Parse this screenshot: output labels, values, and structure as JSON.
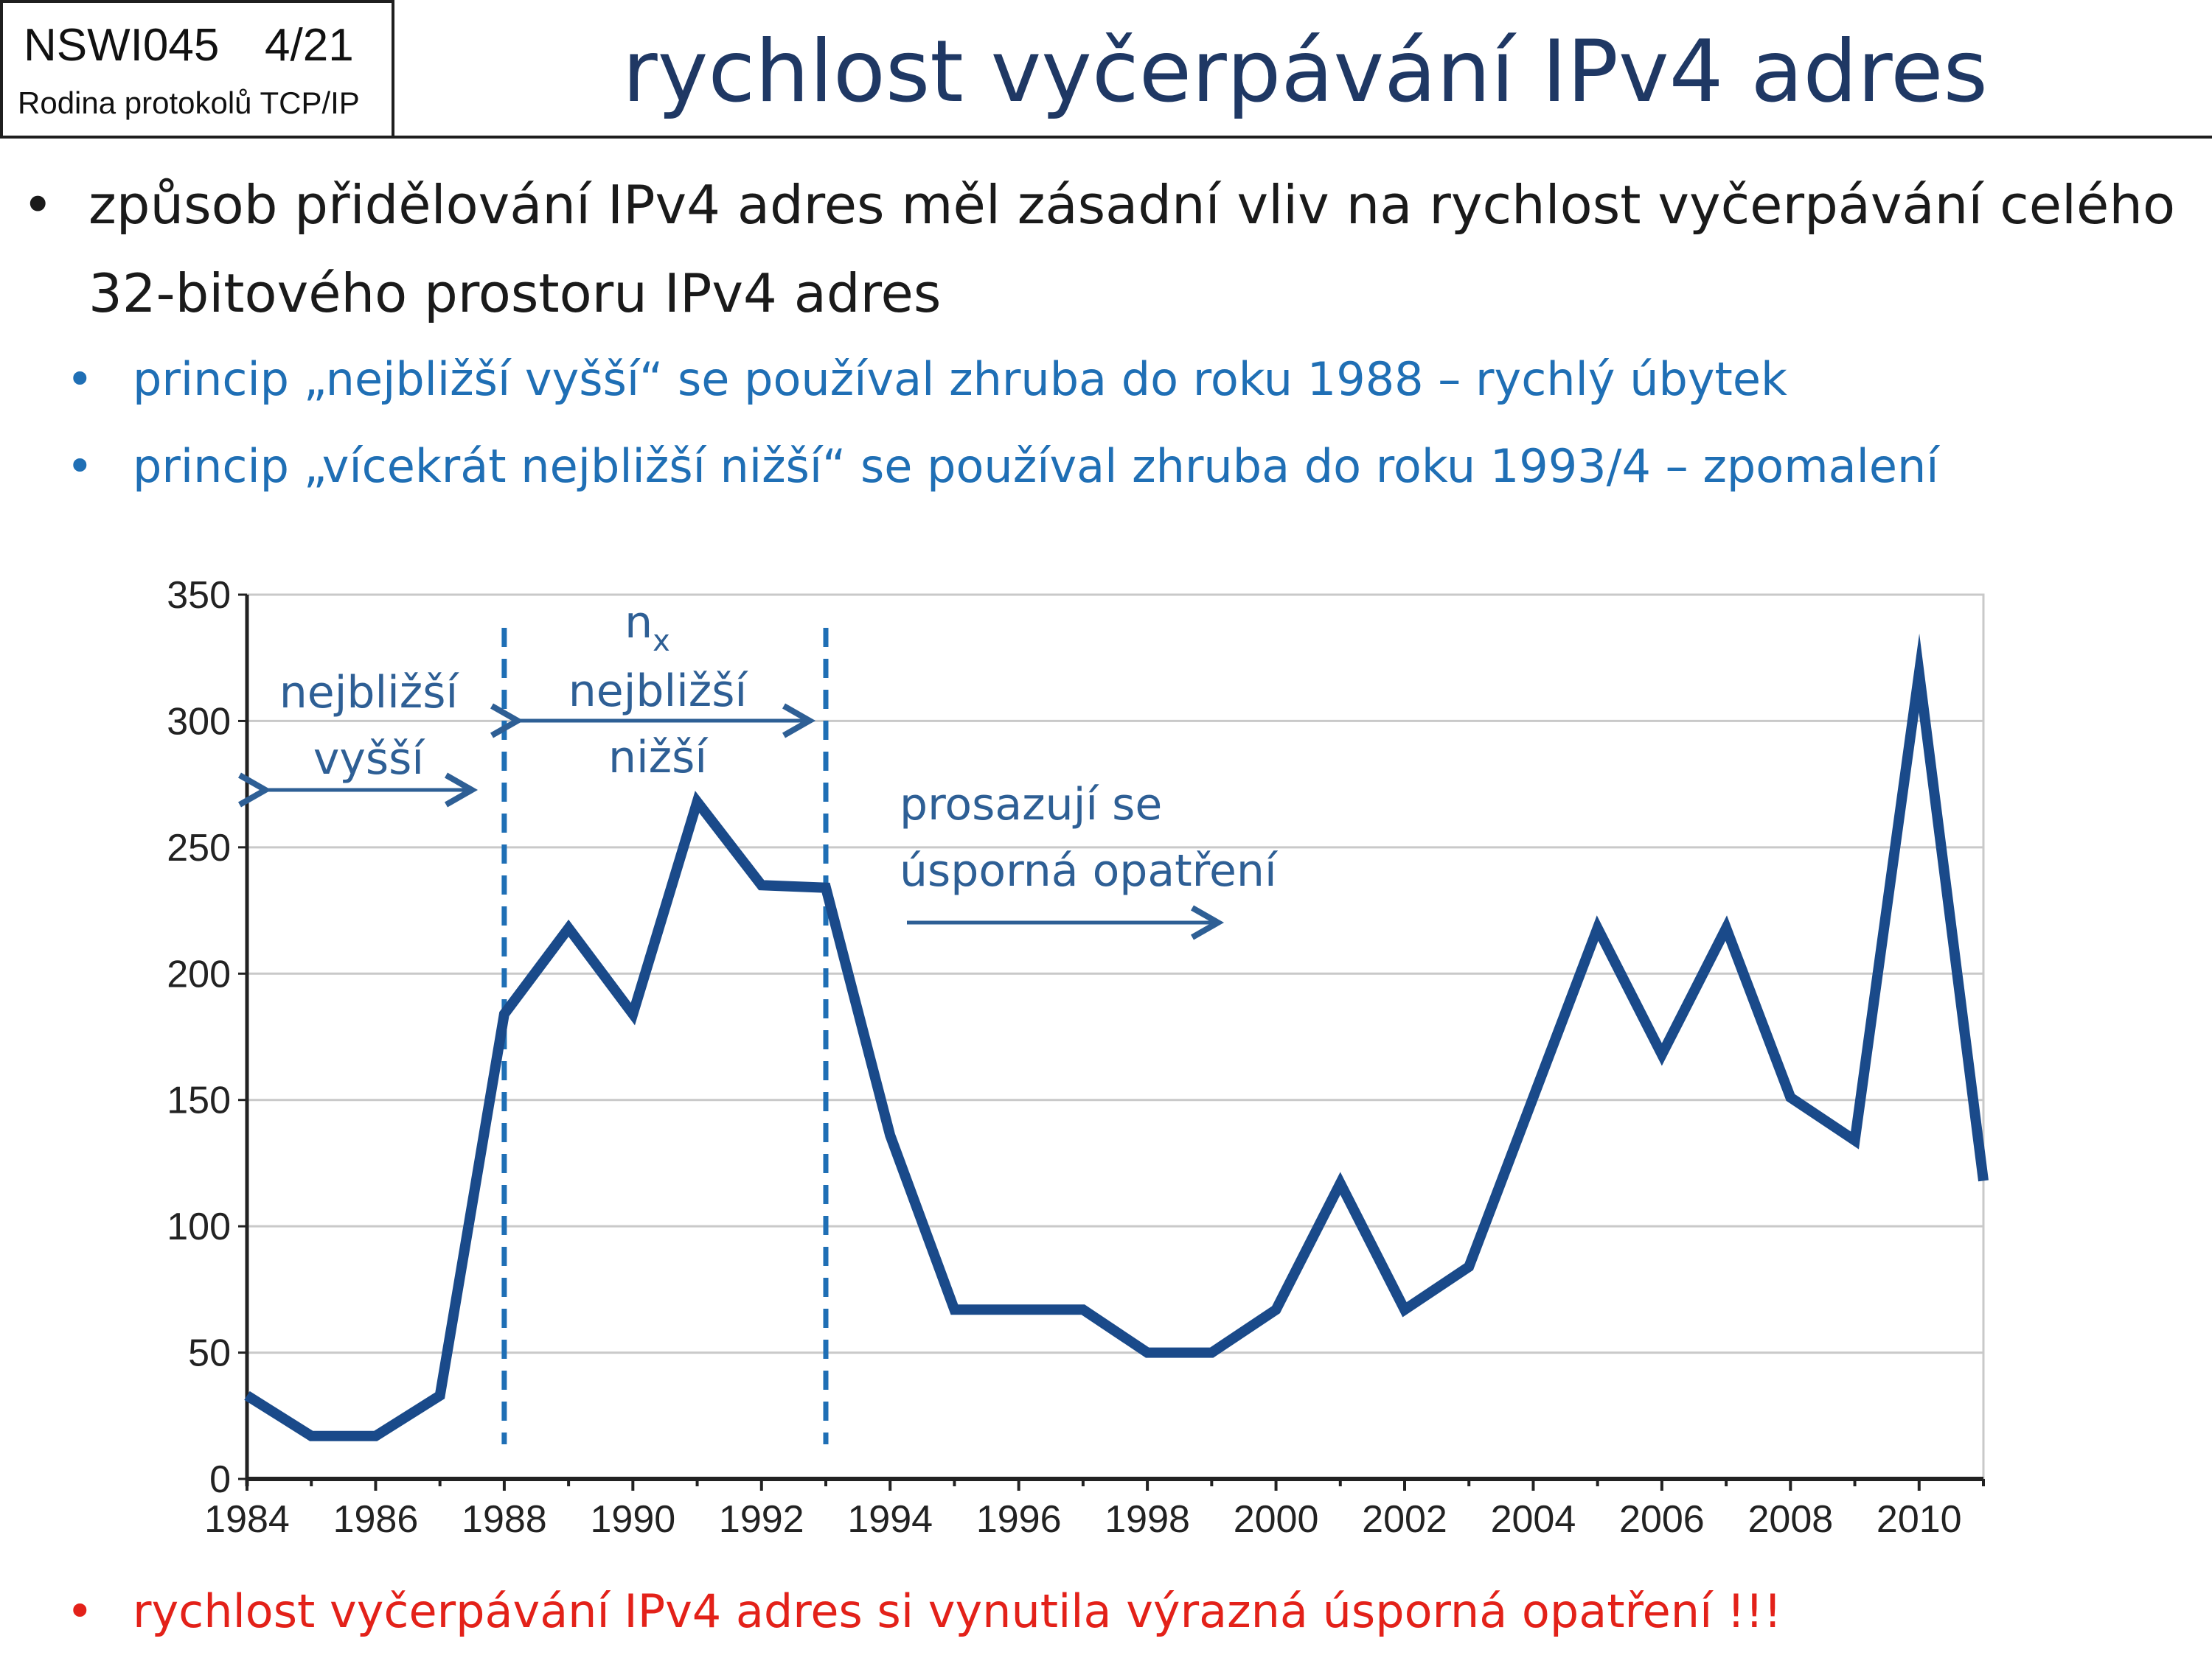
{
  "header": {
    "course_code": "NSWI045",
    "page": "4/21",
    "course_name": "Rodina protokolů TCP/IP",
    "title": "rychlost vyčerpávání IPv4 adres"
  },
  "bullets": {
    "main": "způsob přidělování IPv4 adres měl zásadní vliv na rychlost vyčerpávání celého 32-bitového prostoru IPv4 adres",
    "sub1": "princip „nejbližší vyšší“ se používal zhruba do roku 1988 – rychlý úbytek",
    "sub2": "princip „vícekrát nejbližší nižší“ se používal zhruba do roku 1993/4 – zpomalení",
    "footer": "rychlost vyčerpávání IPv4 adres si vynutila výrazná úsporná opatření !!!"
  },
  "colors": {
    "title": "#1f3864",
    "sub_bullet": "#1f6fb5",
    "footer_bullet": "#e32119",
    "series": "#1a4a8a",
    "annotation": "#2e5f95",
    "vline": "#1f6fb5"
  },
  "chart_data": {
    "type": "line",
    "x": [
      1984,
      1985,
      1986,
      1987,
      1988,
      1989,
      1990,
      1991,
      1992,
      1993,
      1994,
      1995,
      1996,
      1997,
      1998,
      1999,
      2000,
      2001,
      2002,
      2003,
      2004,
      2005,
      2006,
      2007,
      2008,
      2009,
      2010,
      2011
    ],
    "series": [
      {
        "values": [
          33,
          17,
          17,
          33,
          184,
          218,
          184,
          268,
          235,
          234,
          136,
          67,
          67,
          67,
          50,
          50,
          67,
          117,
          67,
          84,
          151,
          218,
          168,
          218,
          151,
          134,
          319,
          118
        ]
      }
    ],
    "xlim": [
      1984,
      2011
    ],
    "ylim": [
      0,
      350
    ],
    "y_ticks": [
      "0",
      "50",
      "100",
      "150",
      "200",
      "250",
      "300",
      "350"
    ],
    "x_ticks": [
      "1984",
      "1986",
      "1988",
      "1990",
      "1992",
      "1994",
      "1996",
      "1998",
      "2000",
      "2002",
      "2004",
      "2006",
      "2008",
      "2010"
    ],
    "grid": true,
    "vlines": [
      1988,
      1993
    ],
    "annotations": {
      "left_line1": "nejbližší",
      "left_line2": "vyšší",
      "mid_n": "n",
      "mid_sub": "x",
      "mid_line1": "nejbližší",
      "mid_line2": "nižší",
      "right_line1": "prosazují se",
      "right_line2": "úsporná opatření"
    }
  }
}
